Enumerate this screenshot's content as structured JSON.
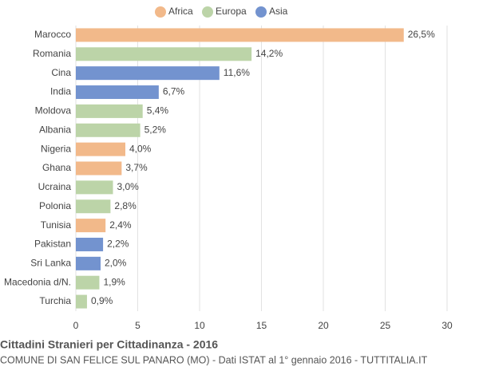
{
  "chart_data": {
    "type": "bar",
    "orientation": "horizontal",
    "title": "Cittadini Stranieri per Cittadinanza - 2016",
    "subtitle": "COMUNE DI SAN FELICE SUL PANARO (MO) - Dati ISTAT al 1° gennaio 2016 - TUTTITALIA.IT",
    "categories": [
      "Marocco",
      "Romania",
      "Cina",
      "India",
      "Moldova",
      "Albania",
      "Nigeria",
      "Ghana",
      "Ucraina",
      "Polonia",
      "Tunisia",
      "Pakistan",
      "Sri Lanka",
      "Macedonia d/N.",
      "Turchia"
    ],
    "series": [
      {
        "name": "Africa",
        "color": "#f2b98a",
        "values": [
          26.5,
          null,
          null,
          null,
          null,
          null,
          4.0,
          3.7,
          null,
          null,
          2.4,
          null,
          null,
          null,
          null
        ],
        "value_labels": [
          "26,5%",
          null,
          null,
          null,
          null,
          null,
          "4,0%",
          "3,7%",
          null,
          null,
          "2,4%",
          null,
          null,
          null,
          null
        ]
      },
      {
        "name": "Europa",
        "color": "#bcd4a8",
        "values": [
          null,
          14.2,
          null,
          null,
          5.4,
          5.2,
          null,
          null,
          3.0,
          2.8,
          null,
          null,
          null,
          1.9,
          0.9
        ],
        "value_labels": [
          null,
          "14,2%",
          null,
          null,
          "5,4%",
          "5,2%",
          null,
          null,
          "3,0%",
          "2,8%",
          null,
          null,
          null,
          "1,9%",
          "0,9%"
        ]
      },
      {
        "name": "Asia",
        "color": "#7393cf",
        "values": [
          null,
          null,
          11.6,
          6.7,
          null,
          null,
          null,
          null,
          null,
          null,
          null,
          2.2,
          2.0,
          null,
          null
        ],
        "value_labels": [
          null,
          null,
          "11,6%",
          "6,7%",
          null,
          null,
          null,
          null,
          null,
          null,
          null,
          "2,2%",
          "2,0%",
          null,
          null
        ]
      }
    ],
    "xlim": [
      0,
      30
    ],
    "xticks": [
      0,
      5,
      10,
      15,
      20,
      25,
      30
    ],
    "grid": true
  }
}
